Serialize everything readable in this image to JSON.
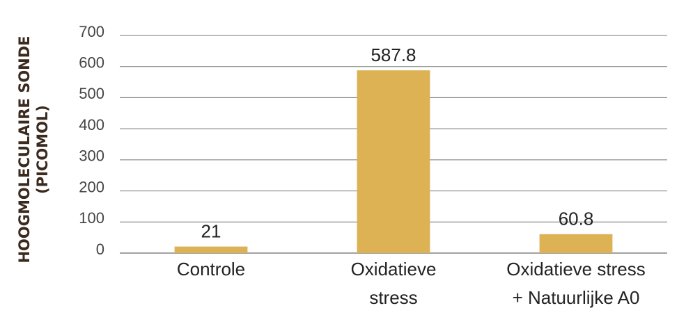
{
  "chart_data": {
    "type": "bar",
    "y_label": [
      "HOOGMOLECULAIRE SONDE",
      "(PICOMOL)"
    ],
    "categories": [
      [
        "Controle"
      ],
      [
        "Oxidatieve",
        "stress"
      ],
      [
        "Oxidatieve stress",
        "+ Natuurlijke A0"
      ]
    ],
    "values": [
      21,
      587.8,
      60.8
    ],
    "color": "#dcb254",
    "ylim": [
      0,
      700
    ],
    "yticks": [
      0,
      100,
      200,
      300,
      400,
      500,
      600,
      700
    ],
    "grid": true
  }
}
